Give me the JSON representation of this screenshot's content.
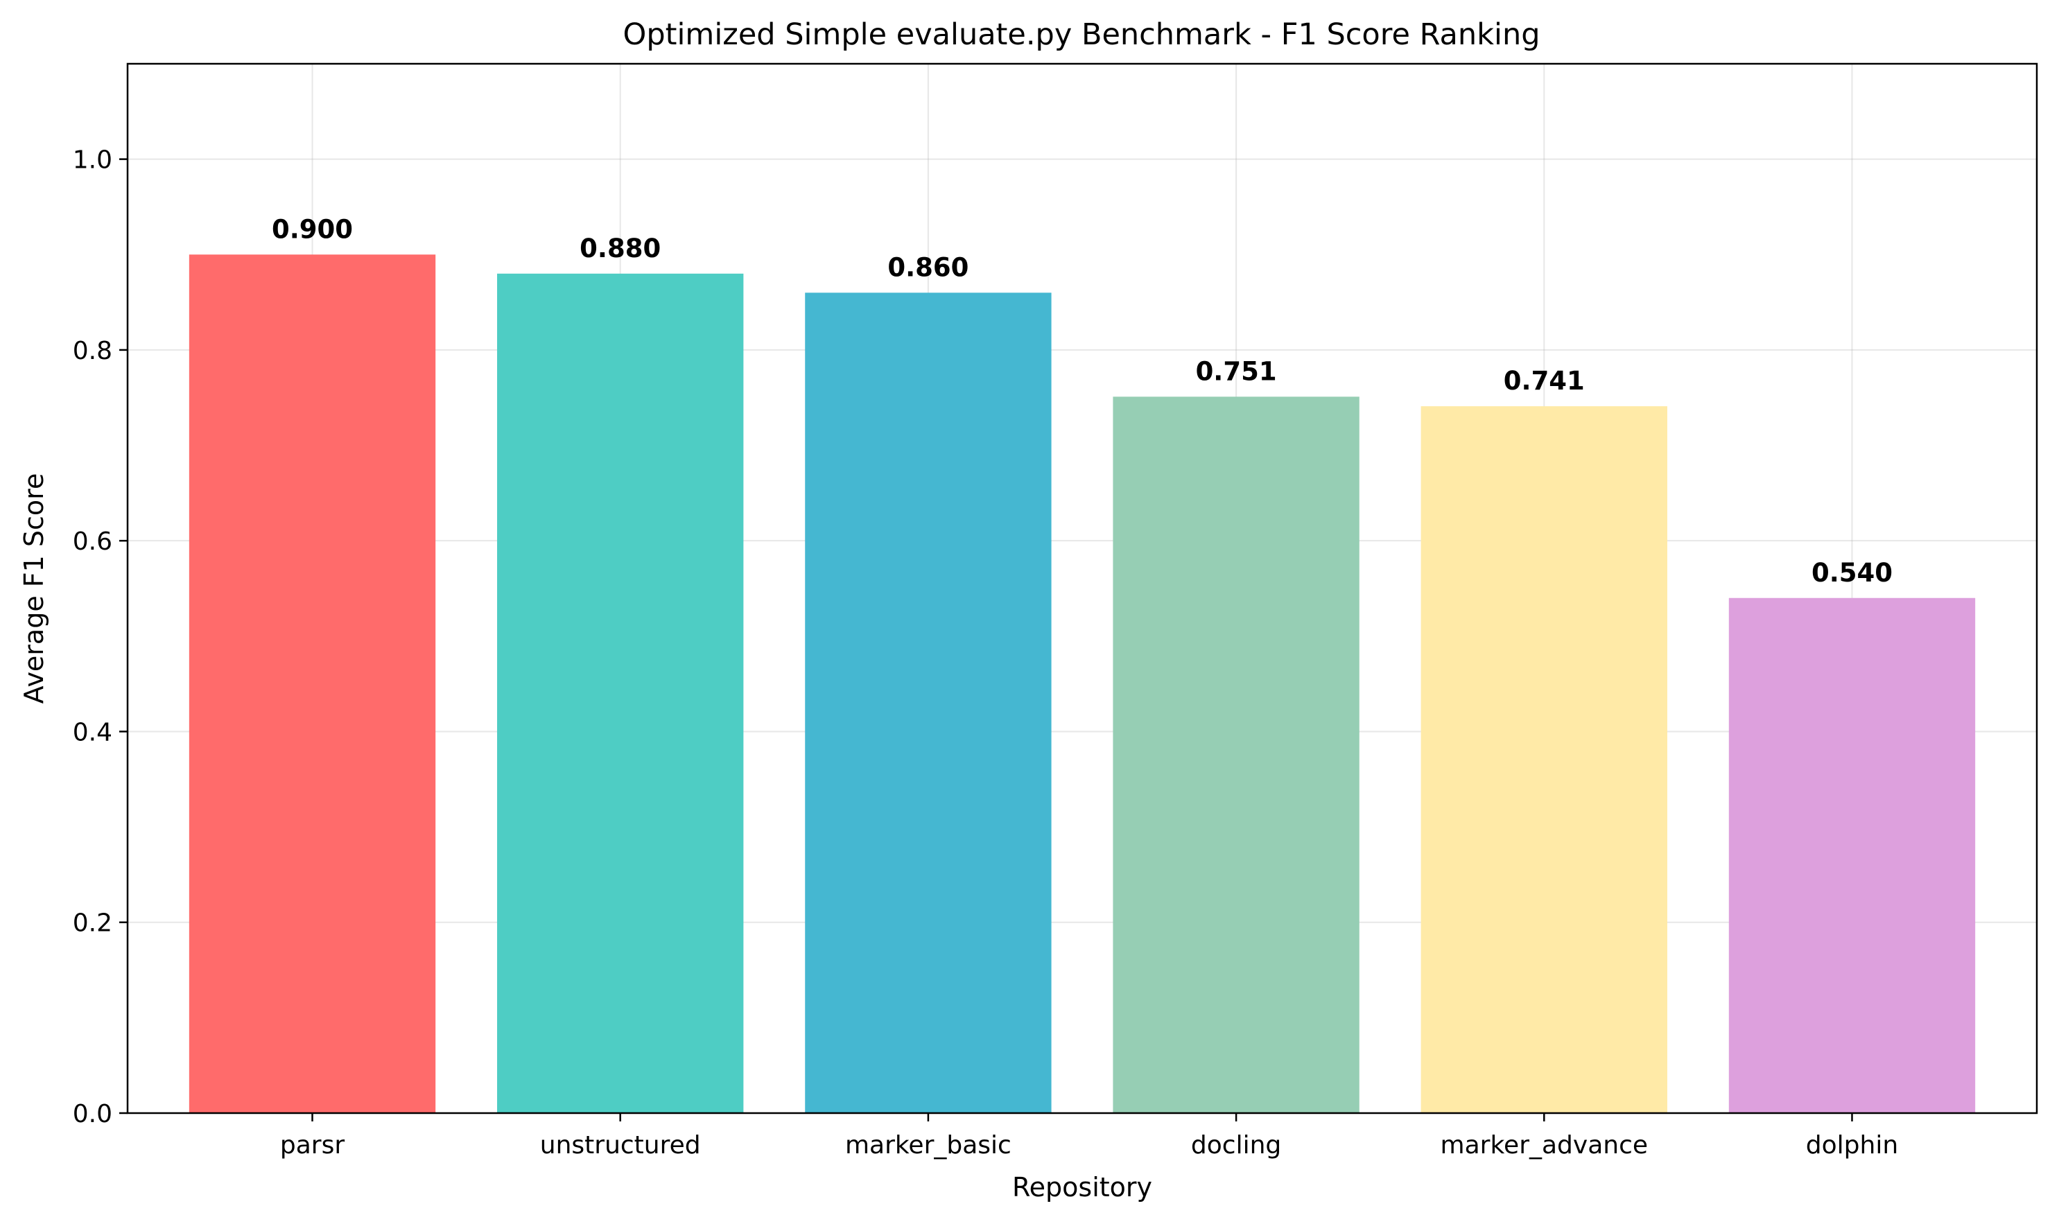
{
  "chart_data": {
    "type": "bar",
    "title": "Optimized Simple evaluate.py Benchmark - F1 Score Ranking",
    "xlabel": "Repository",
    "ylabel": "Average F1 Score",
    "categories": [
      "parsr",
      "unstructured",
      "marker_basic",
      "docling",
      "marker_advance",
      "dolphin"
    ],
    "values": [
      0.9,
      0.88,
      0.86,
      0.751,
      0.741,
      0.54
    ],
    "value_labels": [
      "0.900",
      "0.880",
      "0.860",
      "0.751",
      "0.741",
      "0.540"
    ],
    "colors": [
      "#ff6b6b",
      "#4ecdc4",
      "#45b7d1",
      "#96ceb4",
      "#ffeaa7",
      "#dda0dd"
    ],
    "ylim": [
      0,
      1.1
    ],
    "yticks": [
      0.0,
      0.2,
      0.4,
      0.6,
      0.8,
      1.0
    ],
    "ytick_labels": [
      "0.0",
      "0.2",
      "0.4",
      "0.6",
      "0.8",
      "1.0"
    ],
    "grid": true,
    "legend": "none"
  }
}
